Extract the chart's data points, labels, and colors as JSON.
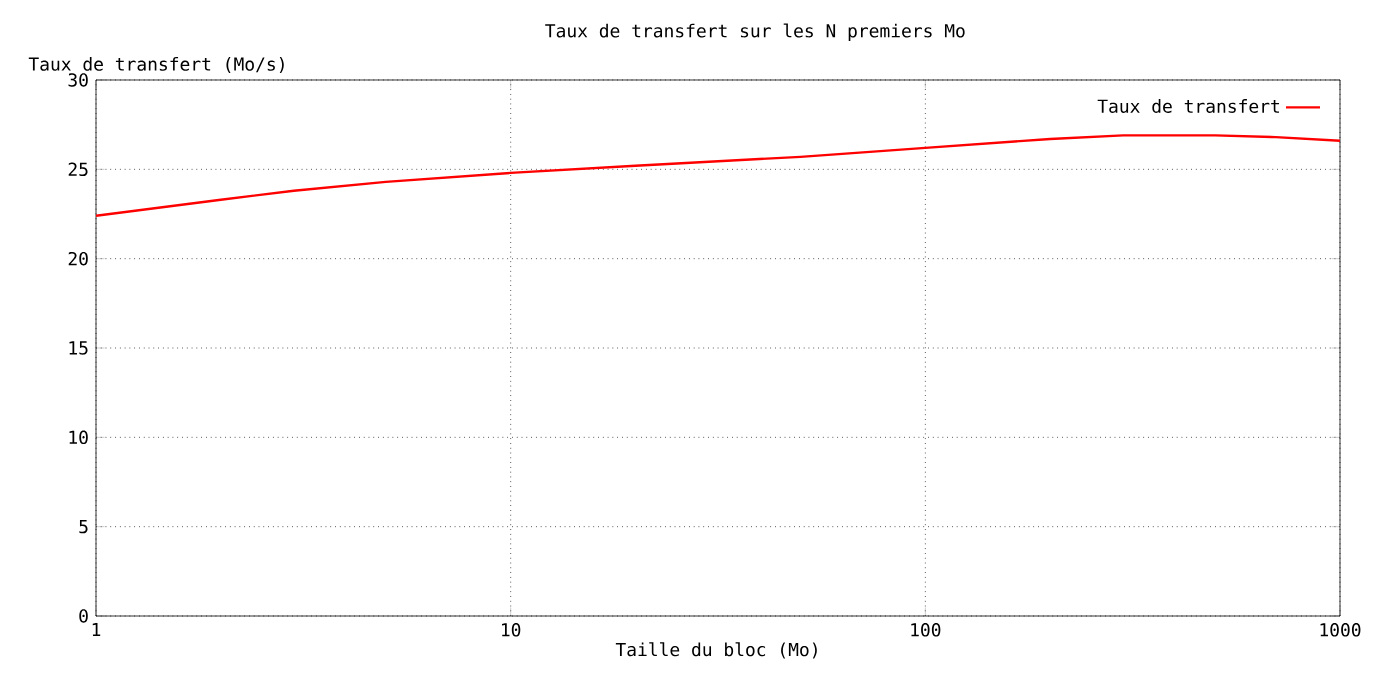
{
  "chart_data": {
    "type": "line",
    "title": "Taux de transfert sur les N premiers Mo",
    "xlabel": "Taille du bloc (Mo)",
    "ylabel": "Taux de transfert (Mo/s)",
    "log": "x",
    "xlim": [
      1,
      1000
    ],
    "xticks": [
      1,
      10,
      100,
      1000
    ],
    "ylim": [
      0,
      30
    ],
    "yticks": [
      0,
      5,
      10,
      15,
      20,
      25,
      30
    ],
    "grid": true,
    "legend": "top right",
    "series": [
      {
        "name": "Taux de transfert",
        "color": "#ff0000",
        "x": [
          1,
          2,
          3,
          5,
          10,
          20,
          50,
          100,
          200,
          300,
          500,
          700,
          1000
        ],
        "values": [
          22.4,
          23.3,
          23.8,
          24.3,
          24.8,
          25.2,
          25.7,
          26.2,
          26.7,
          26.9,
          26.9,
          26.8,
          26.6
        ]
      }
    ]
  }
}
